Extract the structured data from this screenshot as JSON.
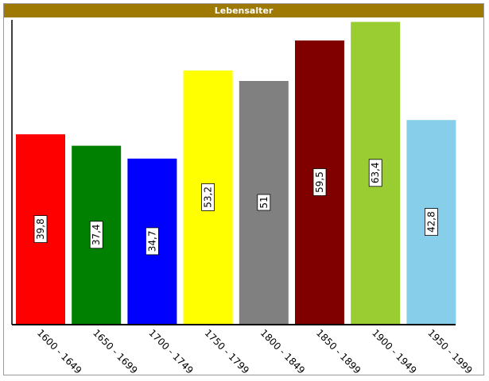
{
  "chart_title": "Lebensalter",
  "chart_data": {
    "type": "bar",
    "title": "Lebensalter",
    "categories": [
      "1600 - 1649",
      "1650 - 1699",
      "1700 - 1749",
      "1750 - 1799",
      "1800 - 1849",
      "1850 - 1899",
      "1900 - 1949",
      "1950 - 1999"
    ],
    "values": [
      39.8,
      37.4,
      34.7,
      53.2,
      51,
      59.5,
      63.4,
      42.8
    ],
    "value_labels": [
      "39,8",
      "37,4",
      "34,7",
      "53,2",
      "51",
      "59,5",
      "63,4",
      "42,8"
    ],
    "colors": [
      "#ff0000",
      "#008000",
      "#0000ff",
      "#ffff00",
      "#808080",
      "#800000",
      "#9acd32",
      "#87ceeb"
    ],
    "xlabel": "",
    "ylabel": "",
    "ylim": [
      0,
      65
    ],
    "grid": false,
    "legend": "none"
  }
}
